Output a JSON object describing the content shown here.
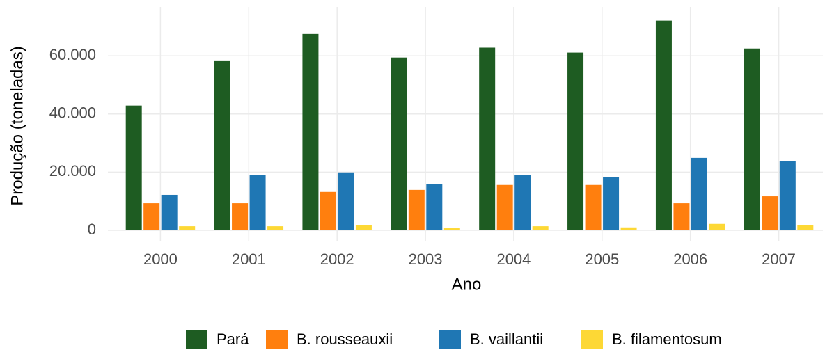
{
  "chart_data": {
    "type": "bar",
    "x_label": "Ano",
    "y_label": "Produção (toneladas)",
    "categories": [
      "2000",
      "2001",
      "2002",
      "2003",
      "2004",
      "2005",
      "2006",
      "2007"
    ],
    "series": [
      {
        "name": "Pará",
        "color": "#1e5c22",
        "values": [
          42900,
          58400,
          67500,
          59400,
          62800,
          61100,
          72100,
          62500
        ]
      },
      {
        "name": "B. rousseauxii",
        "color": "#ff7f0e",
        "values": [
          9300,
          9300,
          13200,
          13900,
          15600,
          15600,
          9300,
          11700
        ]
      },
      {
        "name": "B. vaillantii",
        "color": "#1f77b4",
        "values": [
          12200,
          18900,
          19900,
          16000,
          18900,
          18200,
          24900,
          23700
        ]
      },
      {
        "name": "B. filamentosum",
        "color": "#fdd835",
        "values": [
          1400,
          1400,
          1700,
          700,
          1400,
          1000,
          2200,
          1900
        ]
      }
    ],
    "ylim": [
      -3600,
      75600
    ],
    "yticks": [
      0,
      {
        "value": 20000,
        "label": "20.000"
      },
      {
        "value": 40000,
        "label": "40.000"
      },
      {
        "value": 60000,
        "label": "60.000"
      }
    ],
    "grid": true,
    "legend": "bottom"
  }
}
